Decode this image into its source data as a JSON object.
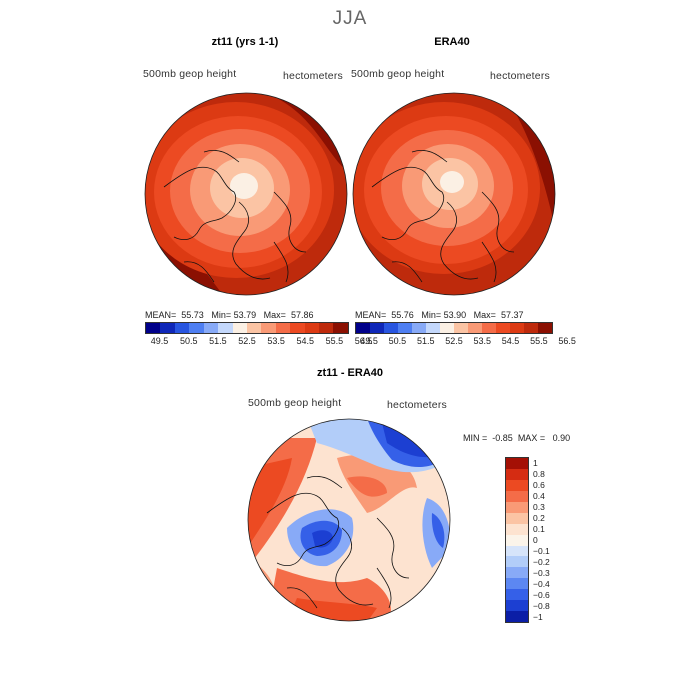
{
  "figure": {
    "title": "JJA"
  },
  "panels": [
    {
      "title": "zt11 (yrs 1-1)",
      "variable": "500mb geop height",
      "units": "hectometers",
      "stats": {
        "mean_label": "MEAN=",
        "mean": "55.73",
        "min_label": "Min=",
        "min": "53.79",
        "max_label": "Max=",
        "max": "57.86"
      }
    },
    {
      "title": "ERA40",
      "variable": "500mb geop height",
      "units": "hectometers",
      "stats": {
        "mean_label": "MEAN=",
        "mean": "55.76",
        "min_label": "Min=",
        "min": "53.90",
        "max_label": "Max=",
        "max": "57.37"
      }
    },
    {
      "title": "zt11 - ERA40",
      "variable": "500mb geop height",
      "units": "hectometers",
      "stats": {
        "min_label": "MIN =",
        "min": "-0.85",
        "max_label": "MAX =",
        "max": "0.90"
      }
    }
  ],
  "abs_colorbar": {
    "colors": [
      "#00008a",
      "#0f27b8",
      "#2855e0",
      "#4f7ff2",
      "#88aaf7",
      "#c4d8fc",
      "#fbf0e4",
      "#fbc4a4",
      "#f99a76",
      "#f46c48",
      "#ec4a22",
      "#dc3a13",
      "#be2a0c",
      "#8b1002"
    ],
    "labels": [
      "49.5",
      "50.5",
      "51.5",
      "52.5",
      "53.5",
      "54.5",
      "55.5",
      "56.5"
    ]
  },
  "diff_colorbar": {
    "colors_top_to_bottom": [
      "#a41005",
      "#d52c12",
      "#ec4a22",
      "#f46c48",
      "#f99a76",
      "#fbc4a4",
      "#fde3d0",
      "#fbf4ea",
      "#d6e4fa",
      "#b2cdf9",
      "#88aaf7",
      "#5c87f2",
      "#3560e8",
      "#1c3fd2",
      "#0b1ea6"
    ],
    "labels": [
      "1",
      "0.8",
      "0.6",
      "0.4",
      "0.3",
      "0.2",
      "0.1",
      "0",
      "−0.1",
      "−0.2",
      "−0.3",
      "−0.4",
      "−0.6",
      "−0.8",
      "−1"
    ]
  },
  "colors": {
    "title_gray": "#666666",
    "coast": "#111111"
  },
  "chart_data": [
    {
      "type": "heatmap",
      "title": "zt11 (yrs 1-1)",
      "projection": "north polar stereographic",
      "field": "500mb geop height",
      "units": "hectometers",
      "contour_levels": [
        49.5,
        50.5,
        51.5,
        52.5,
        53.5,
        54.5,
        55.5,
        56.5
      ],
      "mean": 55.73,
      "min": 53.79,
      "max": 57.86
    },
    {
      "type": "heatmap",
      "title": "ERA40",
      "projection": "north polar stereographic",
      "field": "500mb geop height",
      "units": "hectometers",
      "contour_levels": [
        49.5,
        50.5,
        51.5,
        52.5,
        53.5,
        54.5,
        55.5,
        56.5
      ],
      "mean": 55.76,
      "min": 53.9,
      "max": 57.37
    },
    {
      "type": "heatmap",
      "title": "zt11 - ERA40",
      "projection": "north polar stereographic",
      "field": "500mb geop height difference",
      "units": "hectometers",
      "contour_levels": [
        -1,
        -0.8,
        -0.6,
        -0.4,
        -0.3,
        -0.2,
        -0.1,
        0,
        0.1,
        0.2,
        0.3,
        0.4,
        0.6,
        0.8,
        1
      ],
      "min": -0.85,
      "max": 0.9
    }
  ]
}
